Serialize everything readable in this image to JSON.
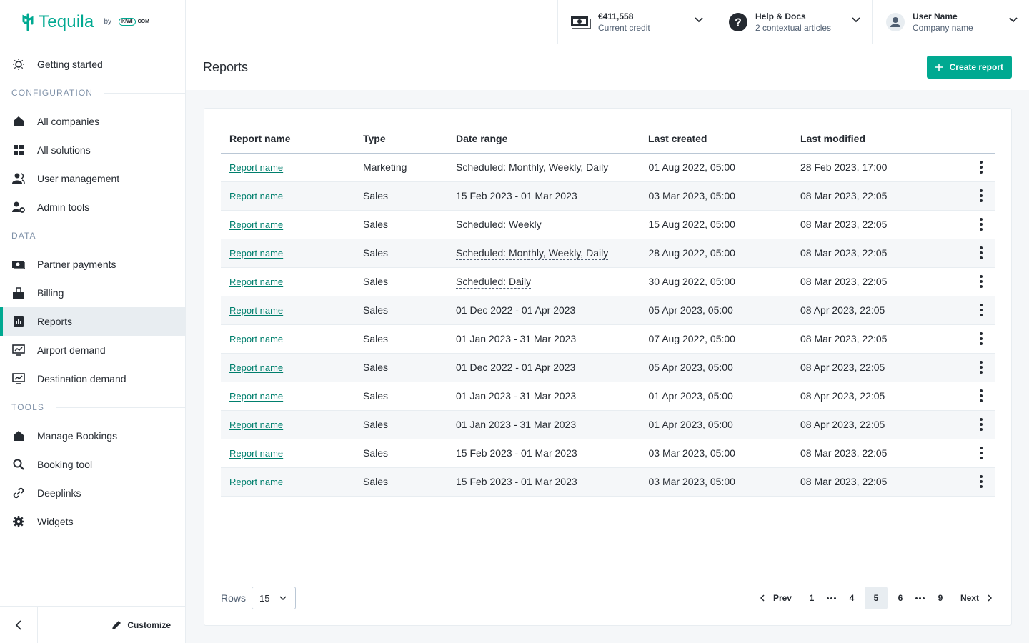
{
  "brand": {
    "name": "Tequila",
    "by": "by",
    "kiwi": "KIWI",
    "com": "COM"
  },
  "topbar": {
    "credit": {
      "amount": "€411,558",
      "label": "Current credit"
    },
    "help": {
      "title": "Help & Docs",
      "sub": "2 contextual articles"
    },
    "user": {
      "name": "User Name",
      "company": "Company name"
    }
  },
  "sidebar": {
    "getting_started": "Getting started",
    "sections": {
      "configuration": "CONFIGURATION",
      "data": "DATA",
      "tools": "TOOLS"
    },
    "config_items": [
      "All companies",
      "All solutions",
      "User management",
      "Admin tools"
    ],
    "data_items": [
      "Partner payments",
      "Billing",
      "Reports",
      "Airport demand",
      "Destination demand"
    ],
    "tools_items": [
      "Manage Bookings",
      "Booking tool",
      "Deeplinks",
      "Widgets"
    ],
    "customize": "Customize"
  },
  "page": {
    "title": "Reports",
    "create_label": "Create report"
  },
  "table": {
    "headers": [
      "Report name",
      "Type",
      "Date range",
      "Last created",
      "Last modified"
    ],
    "rows": [
      {
        "name": "Report name",
        "type": "Marketing",
        "range": "Scheduled: Monthly, Weekly, Daily",
        "created": "01 Aug 2022, 05:00",
        "modified": "28 Feb 2023, 17:00"
      },
      {
        "name": "Report name",
        "type": "Sales",
        "range": "15 Feb 2023 - 01 Mar 2023",
        "created": "03 Mar 2023, 05:00",
        "modified": "08 Mar 2023, 22:05"
      },
      {
        "name": "Report name",
        "type": "Sales",
        "range": "Scheduled: Weekly",
        "created": "15 Aug 2022, 05:00",
        "modified": "08 Mar 2023, 22:05"
      },
      {
        "name": "Report name",
        "type": "Sales",
        "range": "Scheduled: Monthly, Weekly, Daily",
        "created": "28 Aug 2022, 05:00",
        "modified": "08 Mar 2023, 22:05"
      },
      {
        "name": "Report name",
        "type": "Sales",
        "range": "Scheduled: Daily",
        "created": "30 Aug 2022, 05:00",
        "modified": "08 Mar 2023, 22:05"
      },
      {
        "name": "Report name",
        "type": "Sales",
        "range": "01 Dec 2022 - 01 Apr 2023",
        "created": "05 Apr 2023, 05:00",
        "modified": "08 Apr 2023, 22:05"
      },
      {
        "name": "Report name",
        "type": "Sales",
        "range": "01 Jan 2023 - 31 Mar 2023",
        "created": "07 Aug 2022, 05:00",
        "modified": "08 Mar 2023, 22:05"
      },
      {
        "name": "Report name",
        "type": "Sales",
        "range": "01 Dec 2022 - 01 Apr 2023",
        "created": "05 Apr 2023, 05:00",
        "modified": "08 Apr 2023, 22:05"
      },
      {
        "name": "Report name",
        "type": "Sales",
        "range": "01 Jan 2023 - 31 Mar 2023",
        "created": "01 Apr 2023, 05:00",
        "modified": "08 Apr 2023, 22:05"
      },
      {
        "name": "Report name",
        "type": "Sales",
        "range": "01 Jan 2023 - 31 Mar 2023",
        "created": "01 Apr 2023, 05:00",
        "modified": "08 Apr 2023, 22:05"
      },
      {
        "name": "Report name",
        "type": "Sales",
        "range": "15 Feb 2023 - 01 Mar 2023",
        "created": "03 Mar 2023, 05:00",
        "modified": "08 Mar 2023, 22:05"
      },
      {
        "name": "Report name",
        "type": "Sales",
        "range": "15 Feb 2023 - 01 Mar 2023",
        "created": "03 Mar 2023, 05:00",
        "modified": "08 Mar 2023, 22:05"
      }
    ]
  },
  "footer": {
    "rows_label": "Rows",
    "rows_value": "15",
    "prev": "Prev",
    "next": "Next",
    "pages": [
      "1",
      "4",
      "5",
      "6",
      "9"
    ],
    "current_page": "5"
  },
  "colors": {
    "accent": "#00a991",
    "link": "#007f6d",
    "text": "#252a31"
  }
}
